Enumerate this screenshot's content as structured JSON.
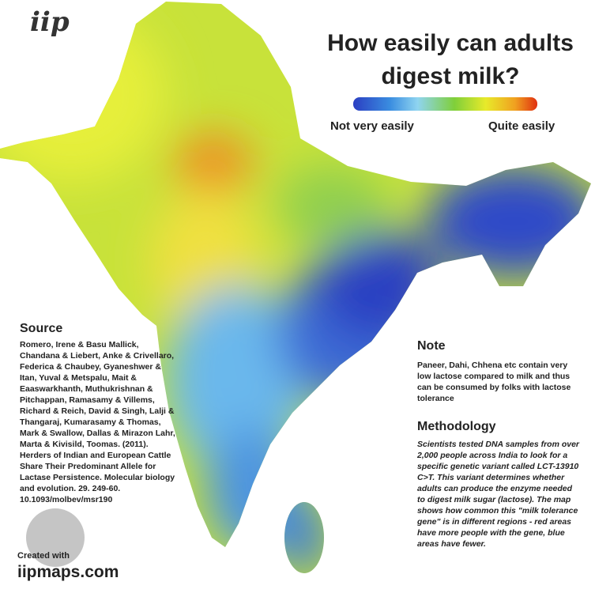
{
  "logo": "iip",
  "title_lines": [
    "How easily can adults",
    "digest milk?"
  ],
  "legend": {
    "low": "Not very easily",
    "high": "Quite easily"
  },
  "source": {
    "heading": "Source",
    "text": "Romero, Irene & Basu Mallick, Chandana & Liebert, Anke & Crivellaro, Federica & Chaubey, Gyaneshwer & Itan, Yuval & Metspalu, Mait & Eaaswarkhanth, Muthukrishnan & Pitchappan, Ramasamy & Villems, Richard & Reich, David & Singh, Lalji & Thangaraj, Kumarasamy & Thomas, Mark & Swallow, Dallas & Mirazon Lahr, Marta & Kivisild, Toomas. (2011). Herders of Indian and European Cattle Share Their Predominant Allele for Lactase Persistence. Molecular biology and evolution. 29. 249-60. 10.1093/molbev/msr190"
  },
  "note": {
    "heading": "Note",
    "text": "Paneer, Dahi, Chhena etc contain very low lactose compared to milk and thus can be consumed by folks with lactose tolerance"
  },
  "methodology": {
    "heading": "Methodology",
    "text": "Scientists tested DNA samples from over 2,000 people across India to look for a specific genetic variant called LCT-13910 C>T. This variant determines whether adults can produce the enzyme needed to digest milk sugar (lactose). The map shows how common this \"milk tolerance gene\" is in different regions - red areas have more people with the gene, blue areas have fewer."
  },
  "footer": {
    "created": "Created with",
    "site": "iipmaps.com"
  }
}
